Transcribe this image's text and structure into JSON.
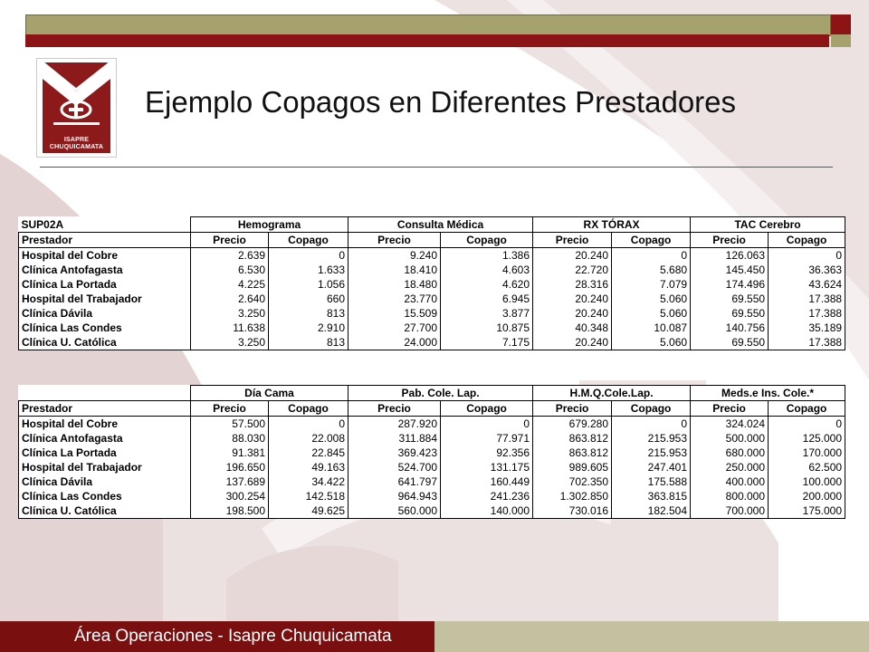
{
  "title": "Ejemplo Copagos en Diferentes Prestadores",
  "logo": {
    "line1": "ISAPRE",
    "line2": "CHUQUICAMATA"
  },
  "footer": "Área Operaciones - Isapre Chuquicamata",
  "colors": {
    "brand_red": "#8c1414",
    "olive": "#a6a26e",
    "footer_red": "#7a0f0f",
    "footer_light": "#c4c1a0"
  },
  "table1": {
    "code": "SUP02A",
    "groups": [
      "Hemograma",
      "Consulta Médica",
      "RX TÓRAX",
      "TAC Cerebro"
    ],
    "subheaders": [
      "Prestador",
      "Precio",
      "Copago",
      "Precio",
      "Copago",
      "Precio",
      "Copago",
      "Precio",
      "Copago"
    ],
    "rows": [
      [
        "Hospital del Cobre",
        "2.639",
        "0",
        "9.240",
        "1.386",
        "20.240",
        "0",
        "126.063",
        "0"
      ],
      [
        "Clínica Antofagasta",
        "6.530",
        "1.633",
        "18.410",
        "4.603",
        "22.720",
        "5.680",
        "145.450",
        "36.363"
      ],
      [
        "Clínica La Portada",
        "4.225",
        "1.056",
        "18.480",
        "4.620",
        "28.316",
        "7.079",
        "174.496",
        "43.624"
      ],
      [
        "Hospital del Trabajador",
        "2.640",
        "660",
        "23.770",
        "6.945",
        "20.240",
        "5.060",
        "69.550",
        "17.388"
      ],
      [
        "Clínica Dávila",
        "3.250",
        "813",
        "15.509",
        "3.877",
        "20.240",
        "5.060",
        "69.550",
        "17.388"
      ],
      [
        "Clínica Las Condes",
        "11.638",
        "2.910",
        "27.700",
        "10.875",
        "40.348",
        "10.087",
        "140.756",
        "35.189"
      ],
      [
        "Clínica U. Católica",
        "3.250",
        "813",
        "24.000",
        "7.175",
        "20.240",
        "5.060",
        "69.550",
        "17.388"
      ]
    ]
  },
  "table2": {
    "groups": [
      "Día Cama",
      "Pab. Cole. Lap.",
      "H.M.Q.Cole.Lap.",
      "Meds.e Ins. Cole.*"
    ],
    "subheaders": [
      "Prestador",
      "Precio",
      "Copago",
      "Precio",
      "Copago",
      "Precio",
      "Copago",
      "Precio",
      "Copago"
    ],
    "rows": [
      [
        "Hospital del Cobre",
        "57.500",
        "0",
        "287.920",
        "0",
        "679.280",
        "0",
        "324.024",
        "0"
      ],
      [
        "Clínica Antofagasta",
        "88.030",
        "22.008",
        "311.884",
        "77.971",
        "863.812",
        "215.953",
        "500.000",
        "125.000"
      ],
      [
        "Clínica La Portada",
        "91.381",
        "22.845",
        "369.423",
        "92.356",
        "863.812",
        "215.953",
        "680.000",
        "170.000"
      ],
      [
        "Hospital del Trabajador",
        "196.650",
        "49.163",
        "524.700",
        "131.175",
        "989.605",
        "247.401",
        "250.000",
        "62.500"
      ],
      [
        "Clínica Dávila",
        "137.689",
        "34.422",
        "641.797",
        "160.449",
        "702.350",
        "175.588",
        "400.000",
        "100.000"
      ],
      [
        "Clínica Las Condes",
        "300.254",
        "142.518",
        "964.943",
        "241.236",
        "1.302.850",
        "363.815",
        "800.000",
        "200.000"
      ],
      [
        "Clínica U. Católica",
        "198.500",
        "49.625",
        "560.000",
        "140.000",
        "730.016",
        "182.504",
        "700.000",
        "175.000"
      ]
    ]
  }
}
